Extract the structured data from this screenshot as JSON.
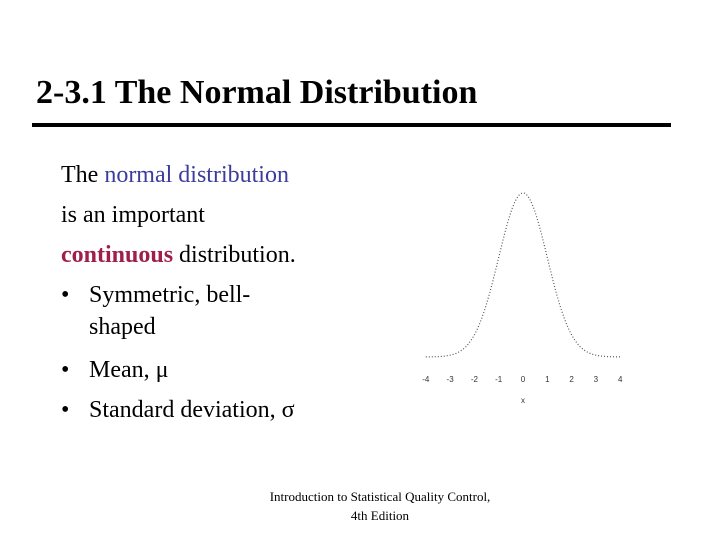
{
  "header": {
    "title": "2-3.1 The Normal Distribution"
  },
  "body": {
    "line1": [
      "The ",
      "normal distribution"
    ],
    "line2": "is an important",
    "line3": [
      "continuous",
      " distribution."
    ],
    "bullets": [
      {
        "lines": [
          "Symmetric, bell-",
          "shaped"
        ]
      },
      {
        "lines": [
          "Mean, μ"
        ]
      },
      {
        "lines": [
          "Standard deviation, σ"
        ]
      }
    ]
  },
  "figure": {
    "xticks": [
      -4,
      -3,
      -2,
      -1,
      0,
      1,
      2,
      3,
      4
    ],
    "xlabel": "x"
  },
  "footer": {
    "lines": [
      "Introduction to Statistical Quality Control,",
      "4th Edition"
    ]
  }
}
